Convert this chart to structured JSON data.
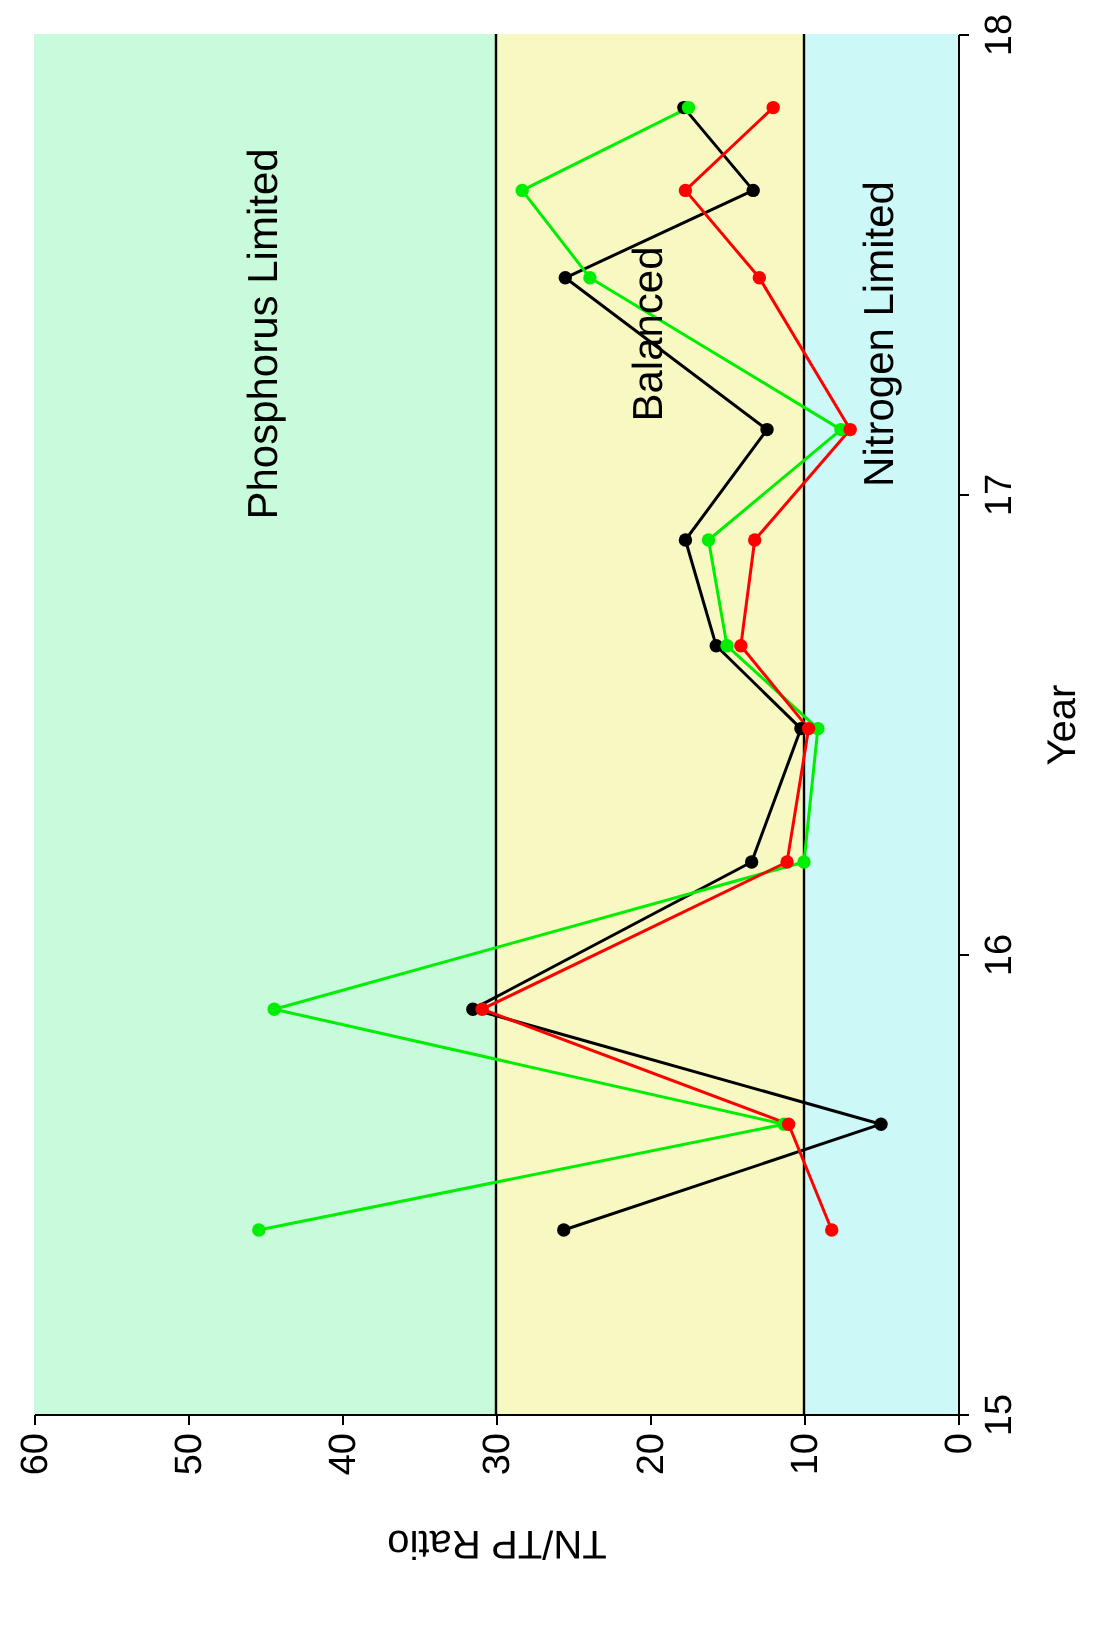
{
  "chart_data": {
    "type": "line",
    "xlabel": "TN/TP Ratio",
    "ylabel": "Year",
    "series": [
      {
        "color": "#000000",
        "x": [
          25.6,
          5.0,
          31.5,
          13.4,
          10.2,
          15.7,
          17.7,
          12.4,
          25.5,
          13.3,
          17.8
        ],
        "values": [
          15.4,
          15.63,
          15.88,
          16.2,
          16.49,
          16.67,
          16.9,
          17.14,
          17.47,
          17.66,
          17.84
        ]
      },
      {
        "color": "#00ee00",
        "x": [
          45.4,
          11.3,
          44.4,
          10.0,
          9.1,
          15.0,
          16.2,
          7.6,
          23.9,
          28.3,
          17.5
        ],
        "values": [
          15.4,
          15.63,
          15.88,
          16.2,
          16.49,
          16.67,
          16.9,
          17.14,
          17.47,
          17.66,
          17.84
        ]
      },
      {
        "color": "#ff0000",
        "x": [
          8.2,
          11.0,
          30.9,
          11.1,
          9.7,
          14.1,
          13.2,
          7.0,
          12.9,
          17.7,
          12.0
        ],
        "values": [
          15.4,
          15.63,
          15.88,
          16.2,
          16.49,
          16.67,
          16.9,
          17.14,
          17.47,
          17.66,
          17.84
        ]
      }
    ],
    "xlim": [
      60,
      0
    ],
    "xticks": [
      0,
      10,
      20,
      30,
      40,
      50,
      60
    ],
    "ylim": [
      15,
      18
    ],
    "yticks": [
      15,
      16,
      17,
      18
    ],
    "bands": [
      {
        "axis": "x",
        "from": 30,
        "to": 60,
        "label": "Phosphorus Limited",
        "color": "#c8fadc"
      },
      {
        "axis": "x",
        "from": 10,
        "to": 30,
        "label": "Balanced",
        "color": "#f8f8c2"
      },
      {
        "axis": "x",
        "from": 0,
        "to": 10,
        "label": "Nitrogen Limited",
        "color": "#ccf8f8"
      }
    ],
    "ref_lines": [
      {
        "axis": "x",
        "value": 30,
        "color": "#000000"
      },
      {
        "axis": "x",
        "value": 10,
        "color": "#000000"
      }
    ],
    "marker": "circle",
    "line_style": "solid"
  }
}
